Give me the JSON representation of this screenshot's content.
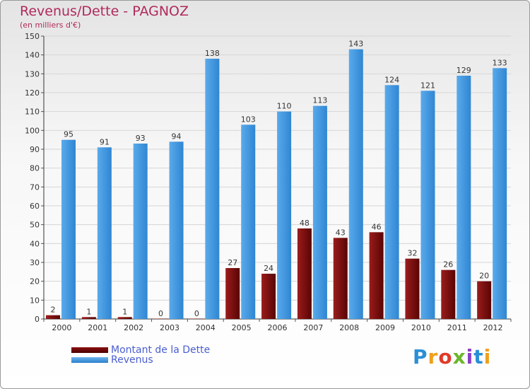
{
  "chart_data": {
    "type": "bar",
    "title": "Revenus/Dette - PAGNOZ",
    "subtitle": "(en milliers d'€)",
    "categories": [
      "2000",
      "2001",
      "2002",
      "2003",
      "2004",
      "2005",
      "2006",
      "2007",
      "2008",
      "2009",
      "2010",
      "2011",
      "2012"
    ],
    "series": [
      {
        "name": "Montant de la Dette",
        "color": "#7a0d0d",
        "values": [
          2,
          1,
          1,
          0,
          0,
          27,
          24,
          48,
          43,
          46,
          32,
          26,
          20
        ]
      },
      {
        "name": "Revenus",
        "color": "#3f97e0",
        "values": [
          95,
          91,
          93,
          94,
          138,
          103,
          110,
          113,
          143,
          124,
          121,
          129,
          133
        ]
      }
    ],
    "ylim": [
      0,
      150
    ],
    "yticks": [
      0,
      10,
      20,
      30,
      40,
      50,
      60,
      70,
      80,
      90,
      100,
      110,
      120,
      130,
      140,
      150
    ],
    "grid": true,
    "legend_position": "bottom-left"
  },
  "logo": {
    "letters": [
      "P",
      "r",
      "o",
      "x",
      "i",
      "t",
      "i"
    ]
  }
}
